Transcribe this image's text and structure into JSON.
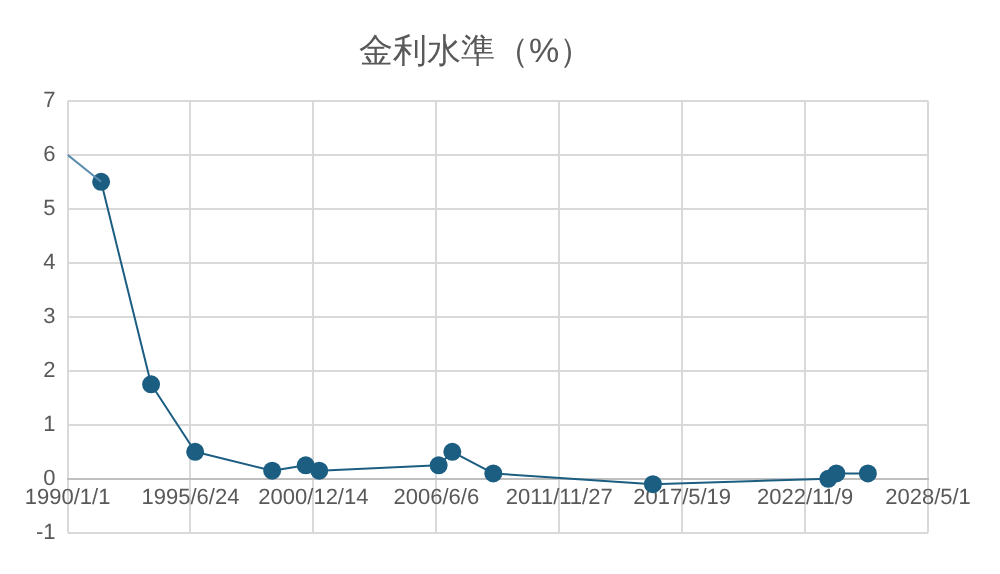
{
  "chart_data": {
    "type": "line",
    "title": "金利水準（%）",
    "series": [
      {
        "color": "#5b8db0",
        "marker": "none",
        "x": [
          "1990-01-01",
          "1991-07-01"
        ],
        "values": [
          6,
          5.5
        ]
      },
      {
        "color": "#1b5e82",
        "marker": "circle",
        "x": [
          "1991-07-01",
          "1993-09-21",
          "1995-09-08",
          "1999-02-12",
          "2000-08-11",
          "2001-03-19",
          "2006-07-14",
          "2007-02-21",
          "2008-12-19",
          "2016-01-29",
          "2023-11-21",
          "2024-04-01",
          "2025-08-27"
        ],
        "values": [
          5.5,
          1.75,
          0.5,
          0.15,
          0.25,
          0.15,
          0.25,
          0.5,
          0.1,
          -0.1,
          0,
          0.1,
          0.1
        ]
      }
    ],
    "xlim": [
      "1990-01-01",
      "2028-05-01"
    ],
    "xticks": [
      {
        "value": "1990-01-01",
        "label": "1990/1/1"
      },
      {
        "value": "1995-06-24",
        "label": "1995/6/24"
      },
      {
        "value": "2000-12-14",
        "label": "2000/12/14"
      },
      {
        "value": "2006-06-06",
        "label": "2006/6/6"
      },
      {
        "value": "2011-11-27",
        "label": "2011/11/27"
      },
      {
        "value": "2017-05-19",
        "label": "2017/5/19"
      },
      {
        "value": "2022-11-09",
        "label": "2022/11/9"
      },
      {
        "value": "2028-05-01",
        "label": "2028/5/1"
      }
    ],
    "ylim": [
      -1,
      7
    ],
    "yticks": [
      -1,
      0,
      1,
      2,
      3,
      4,
      5,
      6,
      7
    ],
    "grid": true,
    "legend": false
  }
}
